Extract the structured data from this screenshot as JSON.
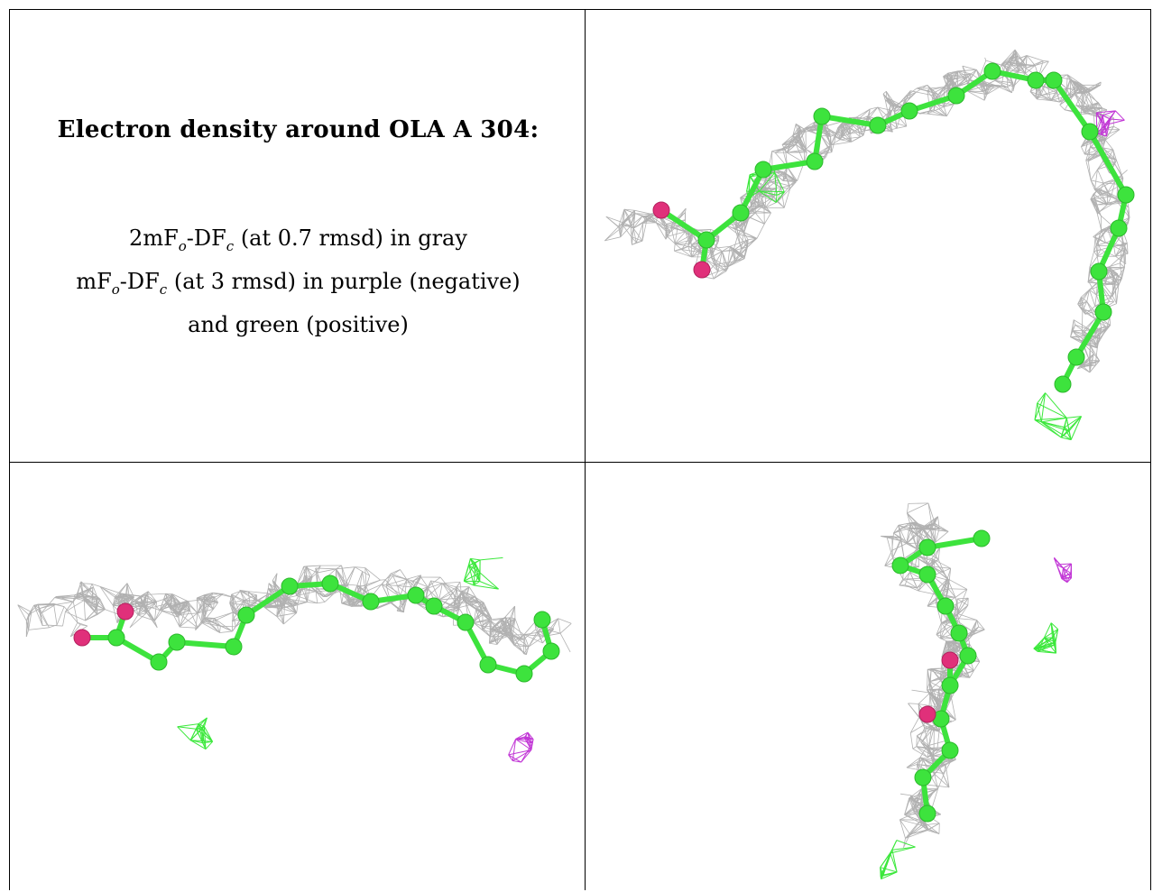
{
  "title": "Electron density around OLA A 304:",
  "legend": {
    "line1": {
      "a": "2mF",
      "s1": "o",
      "b": "-DF",
      "s2": "c",
      "c": " (at 0.7 rmsd) in gray"
    },
    "line2": {
      "a": "mF",
      "s1": "o",
      "b": "-DF",
      "s2": "c",
      "c": " (at 3 rmsd) in purple (negative)"
    },
    "line3": "and green (positive)"
  },
  "colors": {
    "carbon": "#3de33d",
    "oxygen": "#e0307a",
    "mesh_2fofc": "#a9a9a9",
    "mesh_positive": "#3ce83c",
    "mesh_negative": "#c238d6"
  },
  "views": [
    {
      "id": "view-1",
      "ligand": "OLA A 304"
    },
    {
      "id": "view-2",
      "ligand": "OLA A 304"
    },
    {
      "id": "view-3",
      "ligand": "OLA A 304"
    }
  ]
}
